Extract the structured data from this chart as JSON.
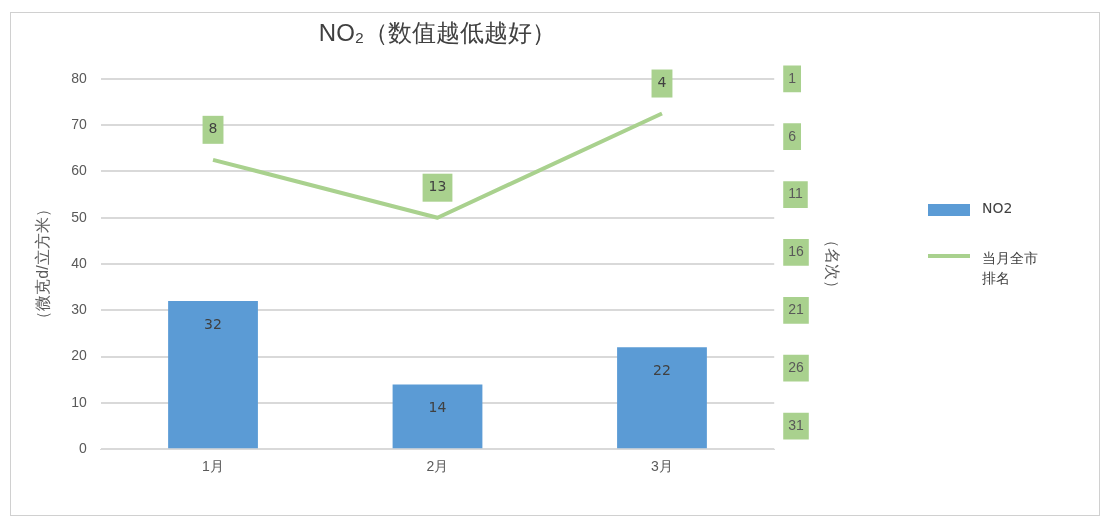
{
  "chart_data": {
    "type": "bar",
    "title": "NO₂（数值越低越好）",
    "ylabel": "（微克d/立方米）",
    "y2label": "（名次）",
    "categories": [
      "1月",
      "2月",
      "3月"
    ],
    "series": [
      {
        "name": "NO2",
        "color": "#5b9bd5",
        "values": [
          32,
          14,
          22
        ]
      },
      {
        "name": "当月全市排名",
        "type": "line",
        "axis": "y2",
        "color": "#a9d18e",
        "values": [
          8,
          13,
          4
        ]
      }
    ],
    "ylim": [
      0,
      80
    ],
    "yticks": [
      0,
      10,
      20,
      30,
      40,
      50,
      60,
      70,
      80
    ],
    "y2lim": [
      33,
      1
    ],
    "y2ticks": [
      1,
      6,
      11,
      16,
      21,
      26,
      31
    ],
    "grid": "y",
    "legend": "right",
    "data_labels": true
  }
}
